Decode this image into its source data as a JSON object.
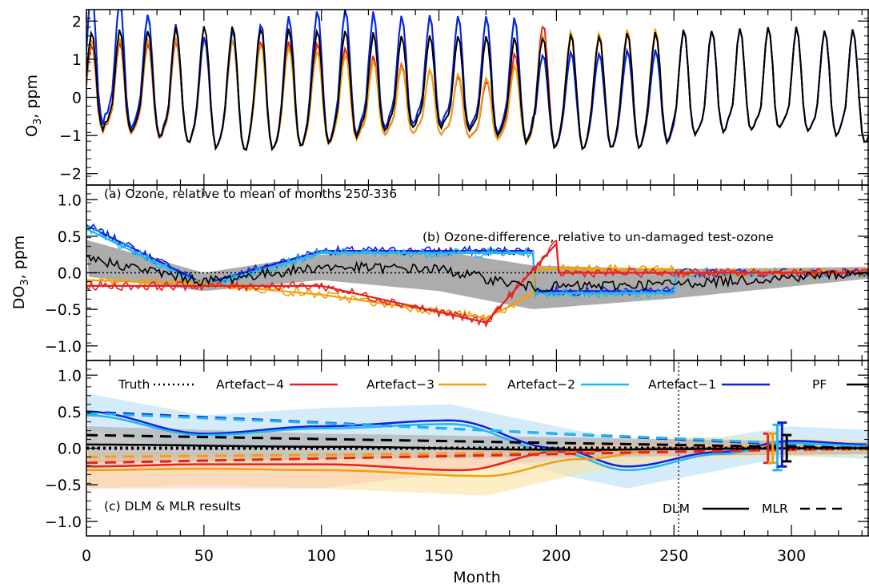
{
  "colors": {
    "Artefact-1": "#1020e0",
    "Artefact-2": "#22b8f0",
    "Artefact-3": "#f0a010",
    "Artefact-4": "#e82020",
    "PF": "#000000",
    "Truth": "#000000",
    "band": "#909090"
  },
  "chart_data": [
    {
      "type": "line",
      "panel": "a",
      "annotation": "(a) Ozone, relative to mean of months 250-336",
      "ylabel_text": "O",
      "ylabel_sub": "3",
      "ylabel_unit": ",  ppm",
      "ylim": [
        -2.3,
        2.3
      ],
      "yticks": [
        -2,
        -1,
        0,
        1,
        2
      ],
      "xlim": [
        0,
        333
      ],
      "model": {
        "period_months": 12,
        "truth_amplitude": 1.5,
        "truth_peak_range": [
          1.35,
          1.6
        ],
        "truth_trough_range": [
          -1.55,
          -0.9
        ],
        "artefact_deviation_from": "panel b"
      },
      "series": [
        {
          "name": "Artefact-4"
        },
        {
          "name": "Artefact-3"
        },
        {
          "name": "Artefact-2"
        },
        {
          "name": "Artefact-1"
        },
        {
          "name": "PF"
        }
      ]
    },
    {
      "type": "line",
      "panel": "b",
      "annotation": "(b) Ozone-difference, relative to un-damaged test-ozone",
      "ylabel_text": "DO",
      "ylabel_sub": "3",
      "ylabel_unit": ",  ppm",
      "ylim": [
        -1.2,
        1.2
      ],
      "yticks": [
        -1.0,
        -0.5,
        0.0,
        0.5,
        1.0
      ],
      "ytick_labels": [
        "−1.0",
        "−0.5",
        "0.0",
        "0.5",
        "1.0"
      ],
      "xlim": [
        0,
        333
      ],
      "series": [
        {
          "name": "Artefact-1",
          "x": [
            0,
            50,
            100,
            190,
            190.5,
            250,
            250.5,
            333
          ],
          "y": [
            0.65,
            -0.15,
            0.3,
            0.3,
            -0.25,
            -0.25,
            0.0,
            0.0
          ]
        },
        {
          "name": "Artefact-2",
          "x": [
            0,
            50,
            100,
            190,
            190.5,
            250,
            250.5,
            333
          ],
          "y": [
            0.6,
            -0.18,
            0.27,
            0.27,
            -0.28,
            -0.28,
            0.0,
            0.0
          ]
        },
        {
          "name": "Artefact-3",
          "x": [
            0,
            50,
            100,
            170,
            190,
            190.5,
            250,
            250.5,
            333
          ],
          "y": [
            -0.1,
            -0.15,
            -0.3,
            -0.62,
            -0.3,
            0.05,
            0.05,
            0.0,
            0.0
          ]
        },
        {
          "name": "Artefact-4",
          "x": [
            0,
            100,
            170,
            200,
            200.5,
            250,
            250.5,
            333
          ],
          "y": [
            -0.18,
            -0.18,
            -0.68,
            0.4,
            0.0,
            0.0,
            0.0,
            0.0
          ]
        },
        {
          "name": "PF",
          "x": [
            0,
            50,
            100,
            150,
            190,
            250,
            333
          ],
          "y": [
            0.2,
            -0.12,
            0.08,
            0.05,
            -0.2,
            -0.15,
            0.0
          ]
        },
        {
          "name": "Truth",
          "style": "dotted",
          "x": [
            0,
            200
          ],
          "y": [
            0,
            0
          ]
        }
      ],
      "band": {
        "x": [
          0,
          50,
          100,
          150,
          190,
          250,
          333
        ],
        "upper": [
          0.45,
          0.0,
          0.25,
          0.3,
          0.1,
          0.05,
          0.08
        ],
        "lower": [
          -0.05,
          -0.25,
          -0.1,
          -0.25,
          -0.5,
          -0.35,
          -0.08
        ]
      }
    },
    {
      "type": "line",
      "panel": "c",
      "annotation": "(c) DLM & MLR results",
      "ylim": [
        -1.2,
        1.2
      ],
      "yticks": [
        -1.0,
        -0.5,
        0.0,
        0.5,
        1.0
      ],
      "ytick_labels": [
        "−1.0",
        "−0.5",
        "0.0",
        "0.5",
        "1.0"
      ],
      "xlim": [
        0,
        333
      ],
      "xticks": [
        0,
        50,
        100,
        150,
        200,
        250,
        300
      ],
      "xlabel": "Month",
      "vline_x": 252,
      "legend": [
        {
          "label": "Truth",
          "style": "dotted",
          "color_key": "Truth"
        },
        {
          "label": "Artefact−4",
          "style": "solid",
          "color_key": "Artefact-4"
        },
        {
          "label": "Artefact−3",
          "style": "solid",
          "color_key": "Artefact-3"
        },
        {
          "label": "Artefact−2",
          "style": "solid",
          "color_key": "Artefact-2"
        },
        {
          "label": "Artefact−1",
          "style": "solid",
          "color_key": "Artefact-1"
        },
        {
          "label": "PF",
          "style": "solid",
          "color_key": "PF"
        }
      ],
      "legend2": [
        {
          "label": "DLM",
          "style": "solid"
        },
        {
          "label": "MLR",
          "style": "dashed"
        }
      ],
      "series": [
        {
          "name": "Artefact-1",
          "method": "DLM",
          "x": [
            0,
            50,
            100,
            155,
            200,
            230,
            270,
            300,
            333
          ],
          "y": [
            0.5,
            0.2,
            0.3,
            0.38,
            0.0,
            -0.25,
            -0.05,
            0.1,
            0.05
          ]
        },
        {
          "name": "Artefact-2",
          "method": "DLM",
          "x": [
            0,
            50,
            100,
            155,
            200,
            230,
            270,
            300,
            333
          ],
          "y": [
            0.45,
            0.18,
            0.27,
            0.33,
            -0.05,
            -0.3,
            -0.08,
            0.07,
            0.03
          ]
        },
        {
          "name": "Artefact-3",
          "method": "DLM",
          "x": [
            0,
            50,
            100,
            170,
            210,
            250,
            300,
            333
          ],
          "y": [
            -0.3,
            -0.28,
            -0.3,
            -0.38,
            -0.15,
            0.0,
            0.02,
            0.0
          ]
        },
        {
          "name": "Artefact-4",
          "method": "DLM",
          "x": [
            0,
            50,
            100,
            160,
            200,
            250,
            300,
            333
          ],
          "y": [
            -0.25,
            -0.22,
            -0.22,
            -0.3,
            -0.05,
            0.0,
            0.0,
            0.0
          ]
        },
        {
          "name": "PF",
          "method": "DLM",
          "x": [
            0,
            100,
            200,
            333
          ],
          "y": [
            0.05,
            0.02,
            -0.02,
            0.0
          ]
        },
        {
          "name": "Artefact-1",
          "method": "MLR",
          "x": [
            0,
            333
          ],
          "y": [
            0.5,
            0.0
          ]
        },
        {
          "name": "Artefact-2",
          "method": "MLR",
          "x": [
            0,
            333
          ],
          "y": [
            0.48,
            0.02
          ]
        },
        {
          "name": "Artefact-3",
          "method": "MLR",
          "x": [
            0,
            333
          ],
          "y": [
            -0.12,
            -0.02
          ]
        },
        {
          "name": "Artefact-4",
          "method": "MLR",
          "x": [
            0,
            333
          ],
          "y": [
            -0.2,
            0.0
          ]
        },
        {
          "name": "PF",
          "method": "MLR",
          "x": [
            0,
            333
          ],
          "y": [
            0.18,
            0.0
          ]
        },
        {
          "name": "Truth",
          "method": "MLR",
          "style": "dotted",
          "x": [
            0,
            333
          ],
          "y": [
            0,
            0
          ]
        }
      ],
      "bands": [
        {
          "color_key": "Artefact-2",
          "x": [
            0,
            50,
            100,
            155,
            200,
            230,
            270,
            300,
            333
          ],
          "upper": [
            0.75,
            0.45,
            0.55,
            0.6,
            0.3,
            0.1,
            0.15,
            0.3,
            0.25
          ],
          "lower": [
            0.25,
            -0.05,
            0.05,
            0.1,
            -0.35,
            -0.55,
            -0.3,
            -0.1,
            -0.15
          ]
        },
        {
          "color_key": "Artefact-3",
          "x": [
            0,
            50,
            100,
            170,
            210,
            250,
            300,
            333
          ],
          "upper": [
            -0.05,
            -0.05,
            -0.05,
            -0.1,
            0.05,
            0.15,
            0.15,
            0.1
          ],
          "lower": [
            -0.55,
            -0.5,
            -0.55,
            -0.65,
            -0.35,
            -0.15,
            -0.12,
            -0.1
          ]
        },
        {
          "color_key": "band",
          "x": [
            0,
            100,
            200,
            333
          ],
          "upper": [
            0.3,
            0.2,
            0.15,
            0.08
          ],
          "lower": [
            -0.2,
            -0.15,
            -0.12,
            -0.08
          ]
        }
      ],
      "error_bars": [
        {
          "name": "Artefact-4",
          "x": 290,
          "y": 0.0,
          "low": -0.2,
          "high": 0.2
        },
        {
          "name": "Artefact-3",
          "x": 292,
          "y": 0.0,
          "low": -0.2,
          "high": 0.2
        },
        {
          "name": "Artefact-2",
          "x": 294,
          "y": 0.02,
          "low": -0.3,
          "high": 0.32
        },
        {
          "name": "Artefact-1",
          "x": 296,
          "y": 0.05,
          "low": -0.25,
          "high": 0.35
        },
        {
          "name": "PF",
          "x": 298,
          "y": 0.0,
          "low": -0.18,
          "high": 0.18
        }
      ]
    }
  ]
}
